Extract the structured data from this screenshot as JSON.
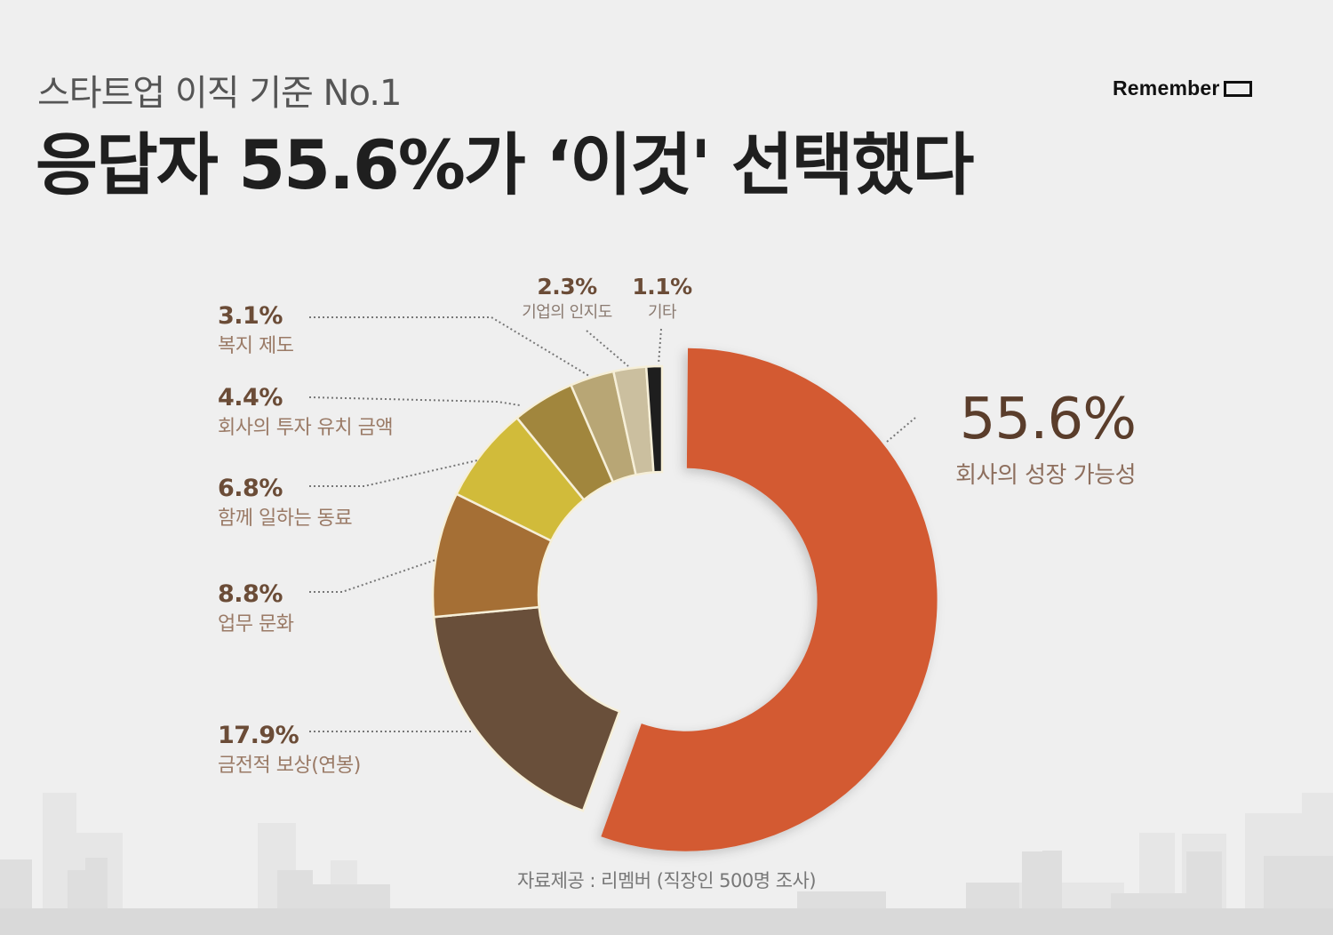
{
  "header": {
    "subtitle": "스타트업 이직 기준 No.1",
    "title": "응답자 55.6%가 ‘이것' 선택했다",
    "brand": "Remember"
  },
  "labels": {
    "growth": {
      "pct": "55.6%",
      "cat": "회사의 성장 가능성"
    },
    "salary": {
      "pct": "17.9%",
      "cat": "금전적 보상(연봉)"
    },
    "culture": {
      "pct": "8.8%",
      "cat": "업무 문화"
    },
    "colleagues": {
      "pct": "6.8%",
      "cat": "함께 일하는 동료"
    },
    "investment": {
      "pct": "4.4%",
      "cat": "회사의 투자 유치 금액"
    },
    "welfare": {
      "pct": "3.1%",
      "cat": "복지 제도"
    },
    "awareness": {
      "pct": "2.3%",
      "cat": "기업의 인지도"
    },
    "other": {
      "pct": "1.1%",
      "cat": "기타"
    }
  },
  "source": "자료제공 : 리멤버 (직장인 500명 조사)",
  "colors": {
    "background": "#efefef",
    "growth": "#d35a32",
    "salary": "#694f3a",
    "culture": "#a56f35",
    "colleagues": "#d1bb3a",
    "investment": "#a1863d",
    "welfare": "#b8a675",
    "awareness": "#cbbf9f",
    "other": "#1e1e1e",
    "title_text": "#1f1f1f",
    "label_pct": "#6b4c37",
    "label_cat": "#9a7a66"
  },
  "chart_data": {
    "type": "pie",
    "subtype": "donut",
    "title": "응답자 55.6%가 ‘이것' 선택했다",
    "subtitle": "스타트업 이직 기준 No.1",
    "categories": [
      "회사의 성장 가능성",
      "금전적 보상(연봉)",
      "업무 문화",
      "함께 일하는 동료",
      "회사의 투자 유치 금액",
      "복지 제도",
      "기업의 인지도",
      "기타"
    ],
    "values": [
      55.6,
      17.9,
      8.8,
      6.8,
      4.4,
      3.1,
      2.3,
      1.1
    ],
    "unit": "%",
    "colors": [
      "#d35a32",
      "#694f3a",
      "#a56f35",
      "#d1bb3a",
      "#a1863d",
      "#b8a675",
      "#cbbf9f",
      "#1e1e1e"
    ],
    "highlighted": "회사의 성장 가능성",
    "start_angle": "12 o'clock, clockwise",
    "annotation": "자료제공 : 리멤버 (직장인 500명 조사)",
    "legend": "none (callout labels with dotted leader lines)"
  }
}
